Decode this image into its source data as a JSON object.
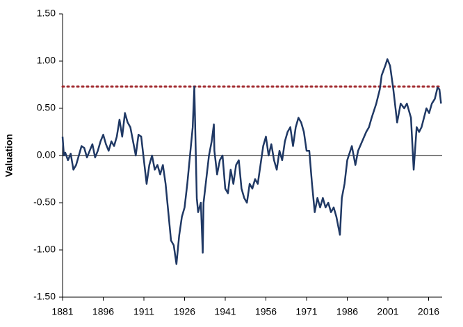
{
  "chart_data": {
    "type": "line",
    "y_label": "Valuation",
    "x": [
      1881,
      1881.5,
      1882,
      1883,
      1884,
      1885,
      1886,
      1887,
      1888,
      1889,
      1890,
      1891,
      1892,
      1893,
      1894,
      1895,
      1896,
      1897,
      1898,
      1899,
      1900,
      1901,
      1902,
      1903,
      1904,
      1905,
      1906,
      1907,
      1908,
      1909,
      1910,
      1911,
      1912,
      1913,
      1914,
      1915,
      1916,
      1917,
      1918,
      1919,
      1920,
      1921,
      1922,
      1923,
      1924,
      1925,
      1926,
      1927,
      1928,
      1929,
      1929.6,
      1930,
      1930.5,
      1931,
      1932,
      1932.7,
      1933,
      1934,
      1935,
      1936,
      1936.8,
      1937,
      1938,
      1939,
      1940,
      1941,
      1942,
      1943,
      1944,
      1945,
      1946,
      1947,
      1948,
      1949,
      1950,
      1951,
      1952,
      1953,
      1954,
      1955,
      1956,
      1957,
      1958,
      1959,
      1960,
      1961,
      1962,
      1963,
      1964,
      1965,
      1966,
      1967,
      1968,
      1969,
      1970,
      1971,
      1972,
      1973,
      1974,
      1975,
      1976,
      1977,
      1978,
      1979,
      1980,
      1981,
      1982,
      1983.3,
      1984,
      1985,
      1986,
      1987.7,
      1989,
      1990,
      1991.5,
      1993,
      1994,
      1995,
      1996.7,
      1998,
      1998.7,
      2000,
      2000.8,
      2001.8,
      2003,
      2004.4,
      2005.7,
      2007,
      2008,
      2009.5,
      2010.5,
      2011.6,
      2012.5,
      2013.4,
      2014.3,
      2015.2,
      2016.2,
      2017.2,
      2018.3,
      2019.3,
      2020,
      2020.6
    ],
    "series": [
      {
        "name": "Valuation",
        "color": "#1f3864",
        "values": [
          0.2,
          0.0,
          0.03,
          -0.05,
          0.02,
          -0.15,
          -0.1,
          0.0,
          0.1,
          0.08,
          -0.02,
          0.05,
          0.12,
          -0.02,
          0.05,
          0.15,
          0.22,
          0.12,
          0.05,
          0.15,
          0.1,
          0.2,
          0.38,
          0.2,
          0.45,
          0.35,
          0.3,
          0.15,
          0.0,
          0.22,
          0.2,
          -0.05,
          -0.3,
          -0.1,
          0.0,
          -0.15,
          -0.1,
          -0.2,
          -0.1,
          -0.3,
          -0.6,
          -0.9,
          -0.95,
          -1.15,
          -0.85,
          -0.65,
          -0.55,
          -0.3,
          0.0,
          0.3,
          0.73,
          0.2,
          -0.45,
          -0.6,
          -0.5,
          -1.03,
          -0.5,
          -0.25,
          0.0,
          0.15,
          0.33,
          0.05,
          -0.2,
          -0.05,
          0.0,
          -0.35,
          -0.4,
          -0.15,
          -0.3,
          -0.1,
          -0.05,
          -0.35,
          -0.45,
          -0.5,
          -0.3,
          -0.35,
          -0.25,
          -0.3,
          -0.1,
          0.1,
          0.2,
          0.0,
          0.12,
          -0.05,
          -0.15,
          0.05,
          -0.05,
          0.15,
          0.25,
          0.3,
          0.1,
          0.3,
          0.4,
          0.35,
          0.25,
          0.05,
          0.05,
          -0.3,
          -0.6,
          -0.45,
          -0.55,
          -0.45,
          -0.55,
          -0.5,
          -0.6,
          -0.55,
          -0.65,
          -0.84,
          -0.45,
          -0.3,
          -0.05,
          0.1,
          -0.1,
          0.05,
          0.15,
          0.25,
          0.3,
          0.4,
          0.55,
          0.7,
          0.85,
          0.95,
          1.02,
          0.95,
          0.7,
          0.35,
          0.55,
          0.5,
          0.55,
          0.4,
          -0.15,
          0.3,
          0.25,
          0.3,
          0.4,
          0.5,
          0.45,
          0.55,
          0.6,
          0.72,
          0.7,
          0.55
        ]
      }
    ],
    "reference_line": {
      "value": 0.73,
      "color": "#a0282d"
    },
    "xlim": [
      1881,
      2021
    ],
    "xticks": [
      1881,
      1896,
      1911,
      1926,
      1941,
      1956,
      1971,
      1986,
      2001,
      2016
    ],
    "ylim": [
      -1.5,
      1.5
    ],
    "yticks": [
      {
        "value": -1.5,
        "label": "-1.50"
      },
      {
        "value": -1.0,
        "label": "-1.00"
      },
      {
        "value": -0.5,
        "label": "-0.50"
      },
      {
        "value": 0,
        "label": "0.00"
      },
      {
        "value": 0.5,
        "label": "0.50"
      },
      {
        "value": 1.0,
        "label": "1.00"
      },
      {
        "value": 1.5,
        "label": "1.50"
      }
    ]
  }
}
